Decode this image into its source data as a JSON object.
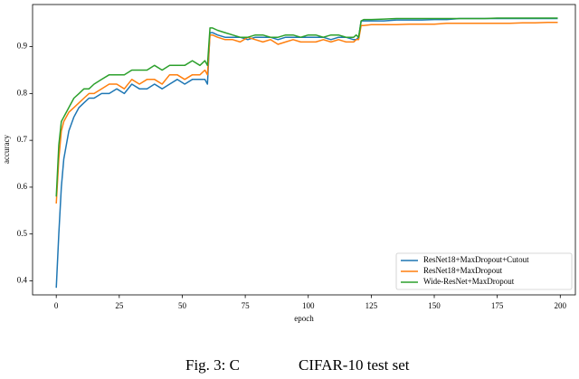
{
  "chart_data": {
    "type": "line",
    "x_label": "epoch",
    "y_label": "accuracy",
    "x": [
      0,
      1,
      2,
      3,
      5,
      7,
      9,
      11,
      13,
      15,
      18,
      21,
      24,
      27,
      30,
      33,
      36,
      39,
      42,
      45,
      48,
      51,
      54,
      57,
      59,
      60,
      61,
      62,
      64,
      67,
      70,
      73,
      76,
      79,
      82,
      85,
      88,
      91,
      94,
      97,
      100,
      103,
      106,
      109,
      112,
      115,
      118,
      119,
      120,
      121,
      122,
      125,
      130,
      135,
      140,
      145,
      150,
      155,
      160,
      165,
      170,
      175,
      180,
      185,
      190,
      195,
      199
    ],
    "series": [
      {
        "name": "ResNet18+MaxDropout+Cutout",
        "color": "#1f77b4",
        "values": [
          0.385,
          0.5,
          0.6,
          0.66,
          0.72,
          0.75,
          0.77,
          0.78,
          0.79,
          0.79,
          0.8,
          0.8,
          0.81,
          0.8,
          0.82,
          0.81,
          0.81,
          0.82,
          0.81,
          0.82,
          0.83,
          0.82,
          0.83,
          0.83,
          0.83,
          0.82,
          0.93,
          0.93,
          0.925,
          0.92,
          0.92,
          0.92,
          0.915,
          0.92,
          0.92,
          0.92,
          0.915,
          0.92,
          0.92,
          0.92,
          0.92,
          0.92,
          0.92,
          0.915,
          0.92,
          0.92,
          0.915,
          0.915,
          0.92,
          0.955,
          0.955,
          0.955,
          0.955,
          0.957,
          0.957,
          0.957,
          0.958,
          0.958,
          0.96,
          0.96,
          0.96,
          0.96,
          0.96,
          0.96,
          0.96,
          0.96,
          0.96
        ]
      },
      {
        "name": "ResNet18+MaxDropout",
        "color": "#ff7f0e",
        "values": [
          0.565,
          0.66,
          0.72,
          0.74,
          0.76,
          0.77,
          0.78,
          0.79,
          0.8,
          0.8,
          0.81,
          0.82,
          0.82,
          0.81,
          0.83,
          0.82,
          0.83,
          0.83,
          0.82,
          0.84,
          0.84,
          0.83,
          0.84,
          0.84,
          0.85,
          0.84,
          0.925,
          0.925,
          0.92,
          0.915,
          0.915,
          0.91,
          0.92,
          0.915,
          0.91,
          0.915,
          0.905,
          0.91,
          0.915,
          0.91,
          0.91,
          0.91,
          0.915,
          0.91,
          0.915,
          0.91,
          0.91,
          0.915,
          0.915,
          0.945,
          0.945,
          0.947,
          0.947,
          0.947,
          0.948,
          0.948,
          0.948,
          0.95,
          0.95,
          0.95,
          0.95,
          0.95,
          0.95,
          0.951,
          0.951,
          0.952,
          0.952
        ]
      },
      {
        "name": "Wide-ResNet+MaxDropout",
        "color": "#2ca02c",
        "values": [
          0.58,
          0.69,
          0.74,
          0.75,
          0.77,
          0.79,
          0.8,
          0.81,
          0.81,
          0.82,
          0.83,
          0.84,
          0.84,
          0.84,
          0.85,
          0.85,
          0.85,
          0.86,
          0.85,
          0.86,
          0.86,
          0.86,
          0.87,
          0.86,
          0.87,
          0.86,
          0.94,
          0.94,
          0.935,
          0.93,
          0.925,
          0.92,
          0.92,
          0.925,
          0.925,
          0.92,
          0.92,
          0.925,
          0.925,
          0.92,
          0.925,
          0.925,
          0.92,
          0.925,
          0.925,
          0.92,
          0.92,
          0.925,
          0.92,
          0.955,
          0.958,
          0.958,
          0.959,
          0.96,
          0.96,
          0.96,
          0.96,
          0.96,
          0.96,
          0.96,
          0.96,
          0.961,
          0.961,
          0.961,
          0.961,
          0.961,
          0.961
        ]
      }
    ],
    "xlim": [
      -9.4,
      206
    ],
    "ylim": [
      0.37,
      0.99
    ],
    "xticks": [
      0,
      25,
      50,
      75,
      100,
      125,
      150,
      175,
      200
    ],
    "yticks": [
      0.4,
      0.5,
      0.6,
      0.7,
      0.8,
      0.9
    ],
    "grid": false,
    "legend": "lower right"
  },
  "caption": [
    "Fig. 3: C",
    "CIFAR-10 test set"
  ]
}
